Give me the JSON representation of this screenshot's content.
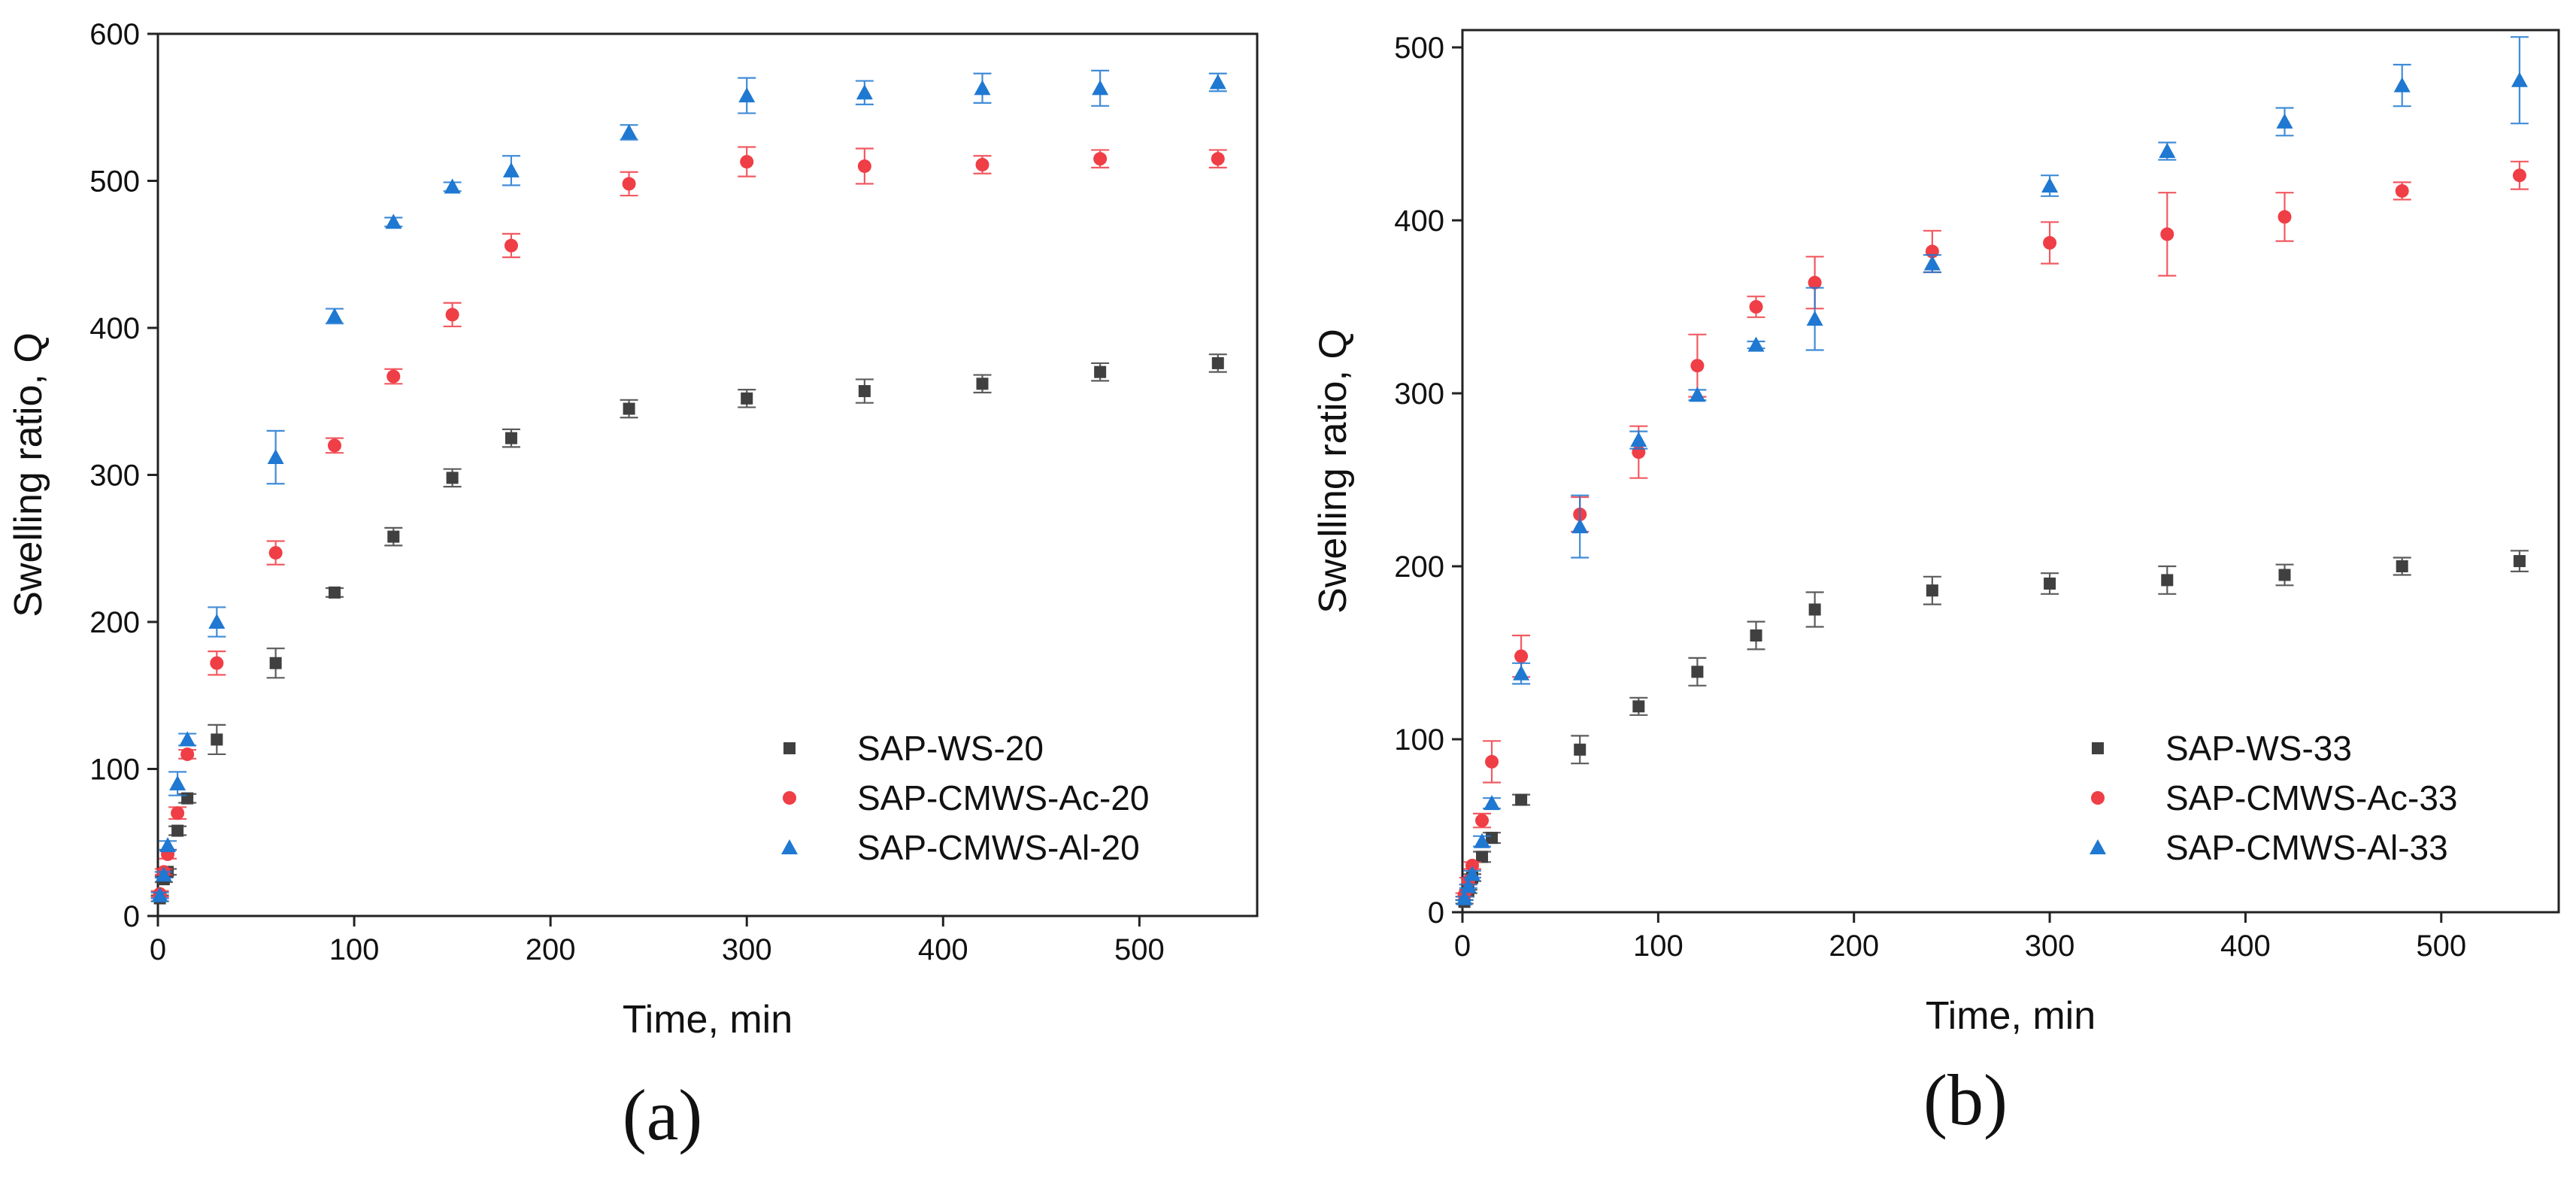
{
  "chart_data": [
    {
      "type": "scatter",
      "panel_label": "(a)",
      "xlabel": "Time, min",
      "ylabel": "Swelling ratio, Q",
      "xlim": [
        0,
        560
      ],
      "ylim": [
        0,
        600
      ],
      "xticks": [
        0,
        100,
        200,
        300,
        400,
        500
      ],
      "yticks": [
        0,
        100,
        200,
        300,
        400,
        500,
        600
      ],
      "error_bars": true,
      "grid": false,
      "legend_position": "bottom-right",
      "x": [
        1,
        3,
        5,
        10,
        15,
        30,
        60,
        90,
        120,
        150,
        180,
        240,
        300,
        360,
        420,
        480,
        540
      ],
      "series": [
        {
          "name": "SAP-WS-20",
          "marker": "square",
          "color": "#404040",
          "values": [
            12,
            25,
            30,
            58,
            80,
            120,
            172,
            220,
            258,
            298,
            325,
            345,
            352,
            357,
            362,
            370,
            376
          ],
          "errors": [
            2,
            2,
            2,
            3,
            3,
            10,
            10,
            3,
            6,
            6,
            6,
            6,
            6,
            8,
            6,
            6,
            6
          ]
        },
        {
          "name": "SAP-CMWS-Ac-20",
          "marker": "circle",
          "color": "#ef3e46",
          "values": [
            15,
            30,
            42,
            70,
            110,
            172,
            247,
            320,
            367,
            409,
            456,
            498,
            513,
            510,
            511,
            515,
            515
          ],
          "errors": [
            2,
            2,
            3,
            4,
            3,
            8,
            8,
            5,
            5,
            8,
            8,
            8,
            10,
            12,
            6,
            6,
            6
          ]
        },
        {
          "name": "SAP-CMWS-Al-20",
          "marker": "triangle",
          "color": "#1f78d1",
          "values": [
            14,
            28,
            48,
            90,
            120,
            200,
            312,
            408,
            472,
            496,
            507,
            533,
            558,
            560,
            563,
            563,
            567
          ],
          "errors": [
            2,
            2,
            3,
            8,
            4,
            10,
            18,
            5,
            3,
            3,
            10,
            5,
            12,
            8,
            10,
            12,
            6
          ]
        }
      ]
    },
    {
      "type": "scatter",
      "panel_label": "(b)",
      "xlabel": "Time, min",
      "ylabel": "Swelling ratio, Q",
      "xlim": [
        0,
        560
      ],
      "ylim": [
        0,
        510
      ],
      "xticks": [
        0,
        100,
        200,
        300,
        400,
        500
      ],
      "yticks": [
        0,
        100,
        200,
        300,
        400,
        500
      ],
      "error_bars": true,
      "grid": false,
      "legend_position": "bottom-right",
      "x": [
        1,
        3,
        5,
        10,
        15,
        30,
        60,
        90,
        120,
        150,
        180,
        240,
        300,
        360,
        420,
        480,
        540
      ],
      "series": [
        {
          "name": "SAP-WS-33",
          "marker": "square",
          "color": "#404040",
          "values": [
            6,
            12,
            20,
            32,
            43,
            65,
            94,
            119,
            139,
            160,
            175,
            186,
            190,
            192,
            195,
            200,
            203
          ],
          "errors": [
            1,
            1,
            2,
            3,
            3,
            3,
            8,
            5,
            8,
            8,
            10,
            8,
            6,
            8,
            6,
            5,
            6
          ]
        },
        {
          "name": "SAP-CMWS-Ac-33",
          "marker": "circle",
          "color": "#ef3e46",
          "values": [
            10,
            18,
            27,
            53,
            87,
            148,
            230,
            266,
            316,
            350,
            364,
            382,
            387,
            392,
            402,
            417,
            426
          ],
          "errors": [
            1,
            2,
            2,
            4,
            12,
            12,
            10,
            15,
            18,
            6,
            15,
            12,
            12,
            24,
            14,
            5,
            8
          ]
        },
        {
          "name": "SAP-CMWS-Al-33",
          "marker": "triangle",
          "color": "#1f78d1",
          "values": [
            8,
            15,
            22,
            41,
            63,
            138,
            223,
            273,
            299,
            328,
            343,
            375,
            420,
            440,
            457,
            478,
            481
          ],
          "errors": [
            1,
            1,
            2,
            3,
            3,
            6,
            18,
            5,
            3,
            2,
            18,
            5,
            6,
            5,
            8,
            12,
            25
          ]
        }
      ]
    }
  ]
}
